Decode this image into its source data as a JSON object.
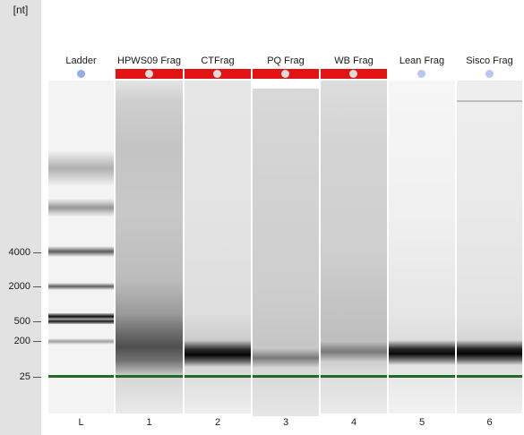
{
  "axis": {
    "unit_label": "[nt]",
    "ticks": [
      {
        "label": "4000",
        "size_nt": 4000
      },
      {
        "label": "2000",
        "size_nt": 2000
      },
      {
        "label": "500",
        "size_nt": 500
      },
      {
        "label": "200",
        "size_nt": 200
      },
      {
        "label": "25",
        "size_nt": 25
      }
    ]
  },
  "colors": {
    "flag_red": "#e21313",
    "ok_dot": "#b9c6ef",
    "flagged_dot": "#dcdcdc",
    "marker_green": "#1f6b1f",
    "axis_bg": "#e2e2e2"
  },
  "lanes": [
    {
      "id": "L",
      "name": "Ladder",
      "number": "L",
      "flagged": false,
      "dot": "#8fb0e6"
    },
    {
      "id": "1",
      "name": "HPWS09 Frag",
      "number": "1",
      "flagged": true
    },
    {
      "id": "2",
      "name": "CTFrag",
      "number": "2",
      "flagged": true
    },
    {
      "id": "3",
      "name": "PQ Frag",
      "number": "3",
      "flagged": true
    },
    {
      "id": "4",
      "name": "WB Frag",
      "number": "4",
      "flagged": true
    },
    {
      "id": "5",
      "name": "Lean Frag",
      "number": "5",
      "flagged": false
    },
    {
      "id": "6",
      "name": "Sisco Frag",
      "number": "6",
      "flagged": false
    }
  ]
}
